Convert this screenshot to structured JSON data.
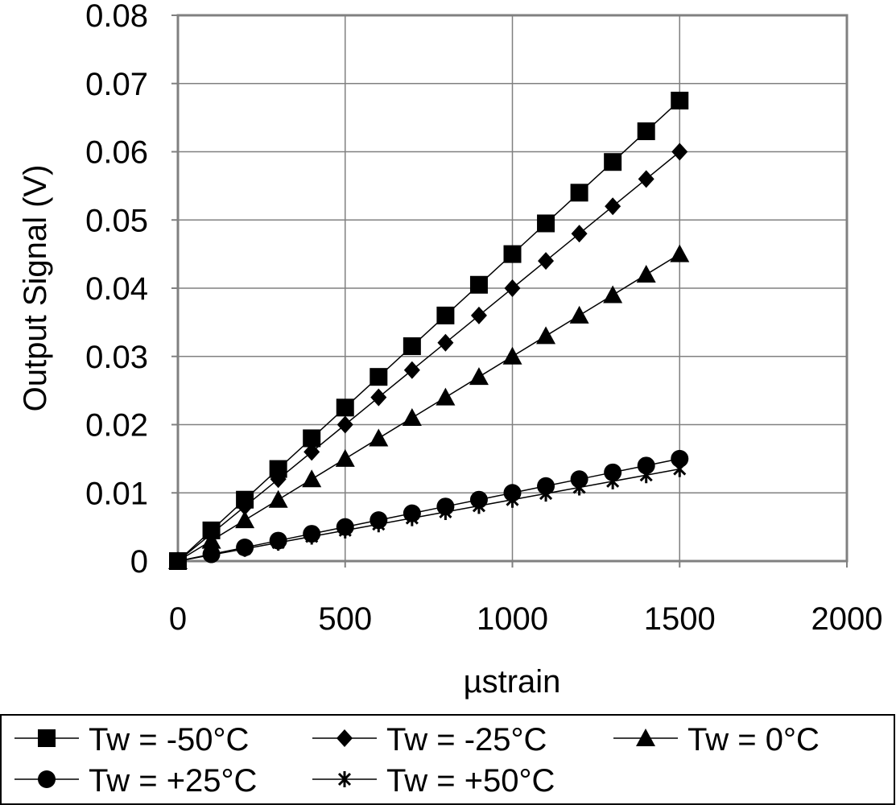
{
  "chart_data": {
    "type": "line",
    "title": "",
    "xlabel": "µstrain",
    "ylabel": "Output Signal (V)",
    "xlim": [
      0,
      2000
    ],
    "ylim": [
      0,
      0.08
    ],
    "xticks": [
      0,
      500,
      1000,
      1500,
      2000
    ],
    "xtick_labels": [
      "0",
      "500",
      "1000",
      "1500",
      "2000"
    ],
    "yticks": [
      0,
      0.01,
      0.02,
      0.03,
      0.04,
      0.05,
      0.06,
      0.07,
      0.08
    ],
    "ytick_labels": [
      "0",
      "0.01",
      "0.02",
      "0.03",
      "0.04",
      "0.05",
      "0.06",
      "0.07",
      "0.08"
    ],
    "grid": true,
    "legend_position": "bottom",
    "x": [
      0,
      100,
      200,
      300,
      400,
      500,
      600,
      700,
      800,
      900,
      1000,
      1100,
      1200,
      1300,
      1400,
      1500
    ],
    "series": [
      {
        "name": "Tw = -50°C",
        "marker": "square",
        "values": [
          0,
          0.0045,
          0.009,
          0.0135,
          0.018,
          0.0225,
          0.027,
          0.0315,
          0.036,
          0.0405,
          0.045,
          0.0495,
          0.054,
          0.0585,
          0.063,
          0.0675
        ]
      },
      {
        "name": "Tw = -25°C",
        "marker": "diamond",
        "values": [
          0,
          0.004,
          0.008,
          0.012,
          0.016,
          0.02,
          0.024,
          0.028,
          0.032,
          0.036,
          0.04,
          0.044,
          0.048,
          0.052,
          0.056,
          0.06
        ]
      },
      {
        "name": "Tw = 0°C",
        "marker": "triangle",
        "values": [
          0,
          0.003,
          0.006,
          0.009,
          0.012,
          0.015,
          0.018,
          0.021,
          0.024,
          0.027,
          0.03,
          0.033,
          0.036,
          0.039,
          0.042,
          0.045
        ]
      },
      {
        "name": "Tw = +25°C",
        "marker": "circle",
        "values": [
          0,
          0.001,
          0.002,
          0.003,
          0.004,
          0.005,
          0.006,
          0.007,
          0.008,
          0.009,
          0.01,
          0.011,
          0.012,
          0.013,
          0.014,
          0.015
        ]
      },
      {
        "name": "Tw = +50°C",
        "marker": "star",
        "values": [
          0,
          0.0009,
          0.0018,
          0.0027,
          0.0036,
          0.0045,
          0.0054,
          0.0063,
          0.0072,
          0.0081,
          0.009,
          0.0099,
          0.0108,
          0.0117,
          0.0126,
          0.0135
        ]
      }
    ]
  }
}
